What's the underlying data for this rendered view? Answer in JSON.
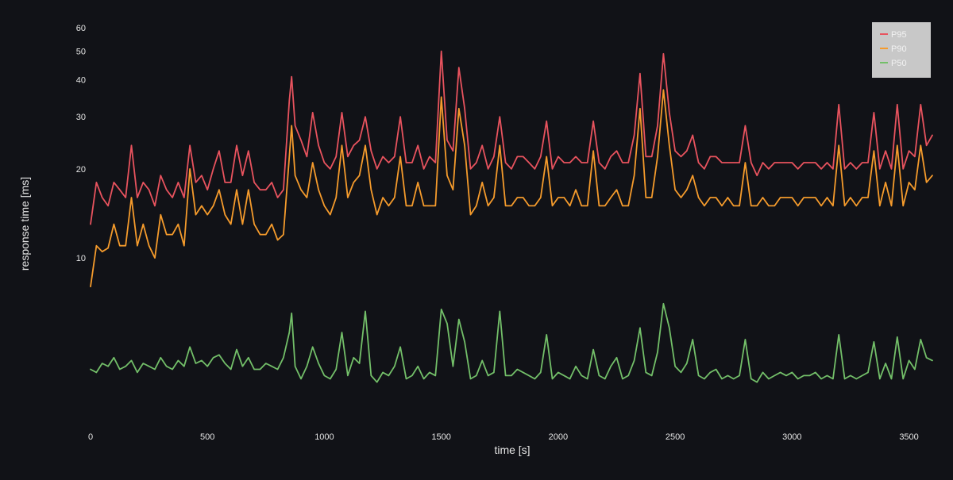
{
  "chart_data": {
    "type": "line",
    "xlabel": "time [s]",
    "ylabel": "response time [ms]",
    "xlim": [
      0,
      3600
    ],
    "ylim": [
      3,
      60
    ],
    "y_scale": "log",
    "x_ticks": [
      0,
      500,
      1000,
      1500,
      2000,
      2500,
      3000,
      3500
    ],
    "y_ticks": [
      10,
      20,
      30,
      40,
      50,
      60
    ],
    "grid": false,
    "legend_position": "top-right",
    "background_color": "#111217",
    "x": [
      0,
      25,
      50,
      75,
      100,
      125,
      150,
      175,
      200,
      225,
      250,
      275,
      300,
      325,
      350,
      375,
      400,
      425,
      450,
      475,
      500,
      525,
      550,
      575,
      600,
      625,
      650,
      675,
      700,
      725,
      750,
      775,
      800,
      825,
      850,
      860,
      875,
      900,
      925,
      950,
      975,
      1000,
      1025,
      1050,
      1075,
      1100,
      1125,
      1150,
      1175,
      1200,
      1225,
      1250,
      1275,
      1300,
      1325,
      1350,
      1375,
      1400,
      1425,
      1450,
      1475,
      1500,
      1525,
      1550,
      1575,
      1600,
      1625,
      1650,
      1675,
      1700,
      1725,
      1750,
      1775,
      1800,
      1825,
      1850,
      1875,
      1900,
      1925,
      1950,
      1975,
      2000,
      2025,
      2050,
      2075,
      2100,
      2125,
      2150,
      2175,
      2200,
      2225,
      2250,
      2275,
      2300,
      2325,
      2350,
      2375,
      2400,
      2425,
      2450,
      2475,
      2500,
      2525,
      2550,
      2575,
      2600,
      2625,
      2650,
      2675,
      2700,
      2725,
      2750,
      2775,
      2800,
      2825,
      2850,
      2875,
      2900,
      2925,
      2950,
      2975,
      3000,
      3025,
      3050,
      3075,
      3100,
      3125,
      3150,
      3175,
      3200,
      3225,
      3250,
      3275,
      3300,
      3325,
      3350,
      3375,
      3400,
      3425,
      3450,
      3475,
      3500,
      3525,
      3550,
      3575,
      3600
    ],
    "series": [
      {
        "name": "P95",
        "color": "#e8535e",
        "values": [
          13,
          18,
          16,
          15,
          18,
          17,
          16,
          24,
          16,
          18,
          17,
          15,
          19,
          17,
          16,
          18,
          16,
          24,
          18,
          19,
          17,
          20,
          23,
          18,
          18,
          24,
          19,
          23,
          18,
          17,
          17,
          18,
          16,
          17,
          34,
          41,
          28,
          25,
          22,
          31,
          24,
          21,
          20,
          22,
          31,
          22,
          24,
          25,
          30,
          23,
          20,
          22,
          21,
          22,
          30,
          21,
          21,
          24,
          20,
          22,
          21,
          50,
          25,
          23,
          44,
          32,
          20,
          21,
          24,
          20,
          22,
          30,
          21,
          20,
          22,
          22,
          21,
          20,
          22,
          29,
          20,
          22,
          21,
          21,
          22,
          21,
          21,
          29,
          21,
          20,
          22,
          23,
          21,
          21,
          26,
          42,
          22,
          22,
          28,
          49,
          31,
          23,
          22,
          23,
          26,
          21,
          20,
          22,
          22,
          21,
          21,
          21,
          21,
          28,
          21,
          19,
          21,
          20,
          21,
          21,
          21,
          21,
          20,
          21,
          21,
          21,
          20,
          21,
          20,
          33,
          20,
          21,
          20,
          21,
          21,
          31,
          20,
          23,
          20,
          33,
          20,
          23,
          22,
          33,
          24,
          26
        ]
      },
      {
        "name": "P90",
        "color": "#f59b2c",
        "values": [
          8,
          11,
          10.5,
          10.8,
          13,
          11,
          11,
          16,
          11,
          13,
          11,
          10,
          14,
          12,
          12,
          13,
          11,
          20,
          14,
          15,
          14,
          15,
          17,
          14,
          13,
          17,
          13,
          17,
          13,
          12,
          12,
          13,
          11.5,
          12,
          22,
          28,
          19,
          17,
          16,
          21,
          17,
          15,
          14,
          16,
          24,
          16,
          18,
          19,
          24,
          17,
          14,
          16,
          15,
          16,
          22,
          15,
          15,
          18,
          15,
          15,
          15,
          35,
          19,
          17,
          32,
          24,
          14,
          15,
          18,
          15,
          16,
          24,
          15,
          15,
          16,
          16,
          15,
          15,
          16,
          22,
          15,
          16,
          16,
          15,
          17,
          15,
          15,
          23,
          15,
          15,
          16,
          17,
          15,
          15,
          19,
          32,
          16,
          16,
          22,
          37,
          24,
          17,
          16,
          17,
          19,
          16,
          15,
          16,
          16,
          15,
          16,
          15,
          15,
          21,
          15,
          15,
          16,
          15,
          15,
          16,
          16,
          16,
          15,
          16,
          16,
          16,
          15,
          16,
          15,
          24,
          15,
          16,
          15,
          16,
          16,
          23,
          15,
          18,
          15,
          24,
          15,
          18,
          17,
          24,
          18,
          19
        ]
      },
      {
        "name": "P50",
        "color": "#73bf69",
        "values": [
          4.2,
          4.1,
          4.4,
          4.3,
          4.6,
          4.2,
          4.3,
          4.5,
          4.1,
          4.4,
          4.3,
          4.2,
          4.6,
          4.3,
          4.2,
          4.5,
          4.3,
          5.0,
          4.4,
          4.5,
          4.3,
          4.6,
          4.7,
          4.4,
          4.2,
          4.9,
          4.3,
          4.6,
          4.2,
          4.2,
          4.4,
          4.3,
          4.2,
          4.6,
          5.6,
          6.5,
          4.3,
          3.9,
          4.3,
          5.0,
          4.4,
          4.0,
          3.9,
          4.2,
          5.6,
          4.0,
          4.6,
          4.4,
          6.6,
          4.0,
          3.8,
          4.1,
          4.0,
          4.3,
          5.0,
          3.9,
          4.0,
          4.3,
          3.9,
          4.1,
          4.0,
          6.7,
          6.0,
          4.3,
          6.2,
          5.2,
          3.9,
          4.0,
          4.5,
          4.0,
          4.1,
          6.6,
          4.0,
          4.0,
          4.2,
          4.1,
          4.0,
          3.9,
          4.1,
          5.5,
          3.9,
          4.1,
          4.0,
          3.9,
          4.3,
          4.0,
          3.9,
          4.9,
          4.0,
          3.9,
          4.3,
          4.6,
          3.9,
          4.0,
          4.5,
          5.8,
          4.1,
          4.0,
          4.8,
          7.0,
          5.8,
          4.3,
          4.1,
          4.4,
          5.3,
          4.0,
          3.9,
          4.1,
          4.2,
          3.9,
          4.0,
          3.9,
          4.0,
          5.3,
          3.9,
          3.8,
          4.1,
          3.9,
          4.0,
          4.1,
          4.0,
          4.1,
          3.9,
          4.0,
          4.0,
          4.1,
          3.9,
          4.0,
          3.9,
          5.5,
          3.9,
          4.0,
          3.9,
          4.0,
          4.1,
          5.2,
          3.9,
          4.4,
          3.9,
          5.4,
          3.9,
          4.5,
          4.2,
          5.3,
          4.6,
          4.5
        ]
      }
    ]
  }
}
